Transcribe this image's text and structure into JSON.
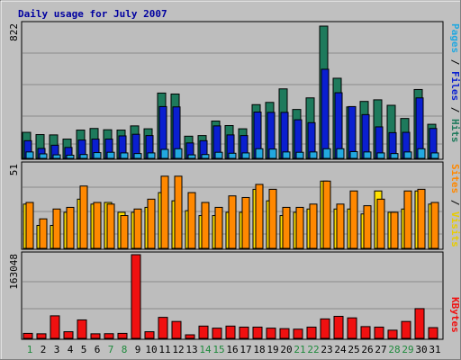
{
  "chart_data": [
    {
      "type": "bar",
      "title": "Daily usage for July 2007",
      "categories": [
        "1",
        "2",
        "3",
        "4",
        "5",
        "6",
        "7",
        "8",
        "9",
        "10",
        "11",
        "12",
        "13",
        "14",
        "15",
        "16",
        "17",
        "18",
        "19",
        "20",
        "21",
        "22",
        "23",
        "24",
        "25",
        "26",
        "27",
        "28",
        "29",
        "30",
        "31"
      ],
      "weekend_days": [
        "1",
        "7",
        "8",
        "14",
        "15",
        "21",
        "22",
        "28",
        "29"
      ],
      "y_tick_label": "822",
      "ylim": [
        0,
        822
      ],
      "series": [
        {
          "name": "Hits",
          "color": "#1e7a5c",
          "values": [
            162,
            148,
            146,
            120,
            176,
            186,
            178,
            176,
            202,
            184,
            406,
            400,
            138,
            142,
            232,
            204,
            184,
            334,
            348,
            432,
            304,
            376,
            822,
            498,
            320,
            354,
            364,
            330,
            248,
            428,
            212
          ]
        },
        {
          "name": "Files",
          "color": "#0a1fd0",
          "values": [
            110,
            62,
            82,
            68,
            114,
            120,
            120,
            140,
            150,
            142,
            322,
            320,
            96,
            110,
            202,
            146,
            142,
            288,
            286,
            286,
            240,
            222,
            554,
            408,
            322,
            272,
            196,
            160,
            162,
            376,
            186
          ]
        },
        {
          "name": "Pages",
          "color": "#22a8e0",
          "values": [
            40,
            28,
            22,
            20,
            24,
            36,
            38,
            34,
            30,
            34,
            56,
            60,
            22,
            24,
            38,
            32,
            34,
            60,
            58,
            40,
            38,
            40,
            60,
            60,
            42,
            40,
            34,
            30,
            40,
            60,
            34
          ]
        }
      ]
    },
    {
      "type": "bar",
      "y_tick_label": "51",
      "ylim": [
        0,
        51
      ],
      "series": [
        {
          "name": "Visits",
          "color": "#ffe000",
          "values": [
            27,
            14,
            14,
            22,
            30,
            27,
            28,
            22,
            22,
            25,
            34,
            29,
            23,
            20,
            20,
            22,
            22,
            36,
            29,
            20,
            22,
            24,
            41,
            24,
            24,
            21,
            35,
            22,
            24,
            35,
            27
          ]
        },
        {
          "name": "Sites",
          "color": "#ff8800",
          "values": [
            28,
            18,
            24,
            25,
            38,
            28,
            27,
            20,
            24,
            30,
            44,
            44,
            34,
            28,
            25,
            32,
            31,
            39,
            36,
            25,
            25,
            27,
            41,
            27,
            35,
            26,
            30,
            22,
            35,
            36,
            28
          ]
        }
      ]
    },
    {
      "type": "bar",
      "y_tick_label": "163048",
      "ylim": [
        0,
        163048
      ],
      "series": [
        {
          "name": "KBytes",
          "color": "#f01010",
          "values": [
            9800,
            9000,
            44000,
            13000,
            36000,
            9000,
            9200,
            9800,
            163048,
            13000,
            41000,
            33000,
            7000,
            24000,
            20000,
            24000,
            22000,
            22000,
            20000,
            19000,
            18000,
            22000,
            38000,
            43000,
            40000,
            23000,
            22000,
            16000,
            33000,
            58000,
            21000
          ]
        }
      ]
    }
  ]
}
